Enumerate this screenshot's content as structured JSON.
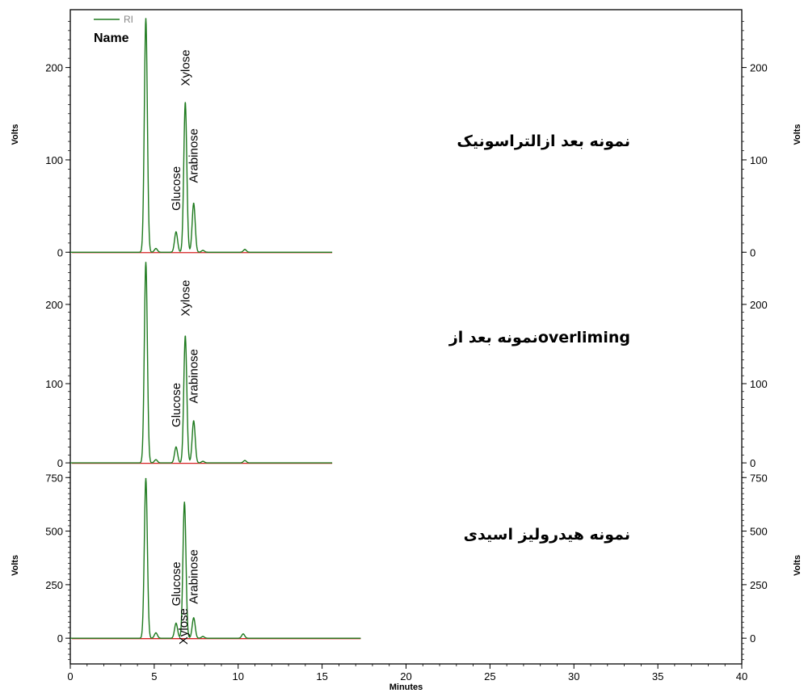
{
  "legend": {
    "series_name": "RI",
    "name_header": "Name"
  },
  "colors": {
    "trace": "#1e7a1e",
    "baseline": "#d62020",
    "axis": "#000000"
  },
  "chart_data": {
    "type": "line",
    "xlabel": "Minutes",
    "xlim": [
      0,
      40
    ],
    "xticks": [
      0,
      5,
      10,
      15,
      20,
      25,
      30,
      35,
      40
    ],
    "panels": [
      {
        "label": "نمونه بعد ازالتراسونیک",
        "ylabel": "Volts",
        "ylim": [
          -5,
          260
        ],
        "yticks": [
          0,
          100,
          200
        ],
        "x_end": 15.6,
        "peaks": [
          {
            "time": 4.5,
            "height": 253
          },
          {
            "time": 5.1,
            "height": 4
          },
          {
            "time": 6.3,
            "height": 22
          },
          {
            "time": 6.85,
            "height": 162
          },
          {
            "time": 7.35,
            "height": 53
          },
          {
            "time": 7.9,
            "height": 2
          },
          {
            "time": 10.4,
            "height": 3
          }
        ],
        "peak_labels": [
          {
            "text": "Glucose",
            "time": 6.3,
            "value": 45
          },
          {
            "text": "Xylose",
            "time": 6.85,
            "value": 180
          },
          {
            "text": "Arabinose",
            "time": 7.35,
            "value": 75
          }
        ]
      },
      {
        "label": "نمونه بعد ازoverliming",
        "ylabel": "",
        "ylim": [
          -5,
          260
        ],
        "yticks": [
          0,
          100,
          200
        ],
        "x_end": 15.6,
        "peaks": [
          {
            "time": 4.5,
            "height": 253
          },
          {
            "time": 5.1,
            "height": 4
          },
          {
            "time": 6.3,
            "height": 20
          },
          {
            "time": 6.85,
            "height": 160
          },
          {
            "time": 7.35,
            "height": 53
          },
          {
            "time": 7.9,
            "height": 2
          },
          {
            "time": 10.4,
            "height": 3
          }
        ],
        "peak_labels": [
          {
            "text": "Glucose",
            "time": 6.3,
            "value": 45
          },
          {
            "text": "Xylose",
            "time": 6.85,
            "value": 185
          },
          {
            "text": "Arabinose",
            "time": 7.35,
            "value": 75
          }
        ]
      },
      {
        "label": "نمونه هیدرولیز اسیدی",
        "ylabel": "Volts",
        "ylim": [
          -120,
          800
        ],
        "yticks": [
          0,
          250,
          500,
          750
        ],
        "x_end": 17.3,
        "peaks": [
          {
            "time": 4.5,
            "height": 745
          },
          {
            "time": 5.1,
            "height": 25
          },
          {
            "time": 6.3,
            "height": 70
          },
          {
            "time": 6.8,
            "height": 635
          },
          {
            "time": 7.35,
            "height": 95
          },
          {
            "time": 7.9,
            "height": 8
          },
          {
            "time": 10.3,
            "height": 20
          }
        ],
        "peak_labels": [
          {
            "text": "Glucose",
            "time": 6.3,
            "value": 150
          },
          {
            "text": "Xylose",
            "time": 6.75,
            "value": -30
          },
          {
            "text": "Arabinose",
            "time": 7.35,
            "value": 160
          }
        ]
      }
    ]
  }
}
